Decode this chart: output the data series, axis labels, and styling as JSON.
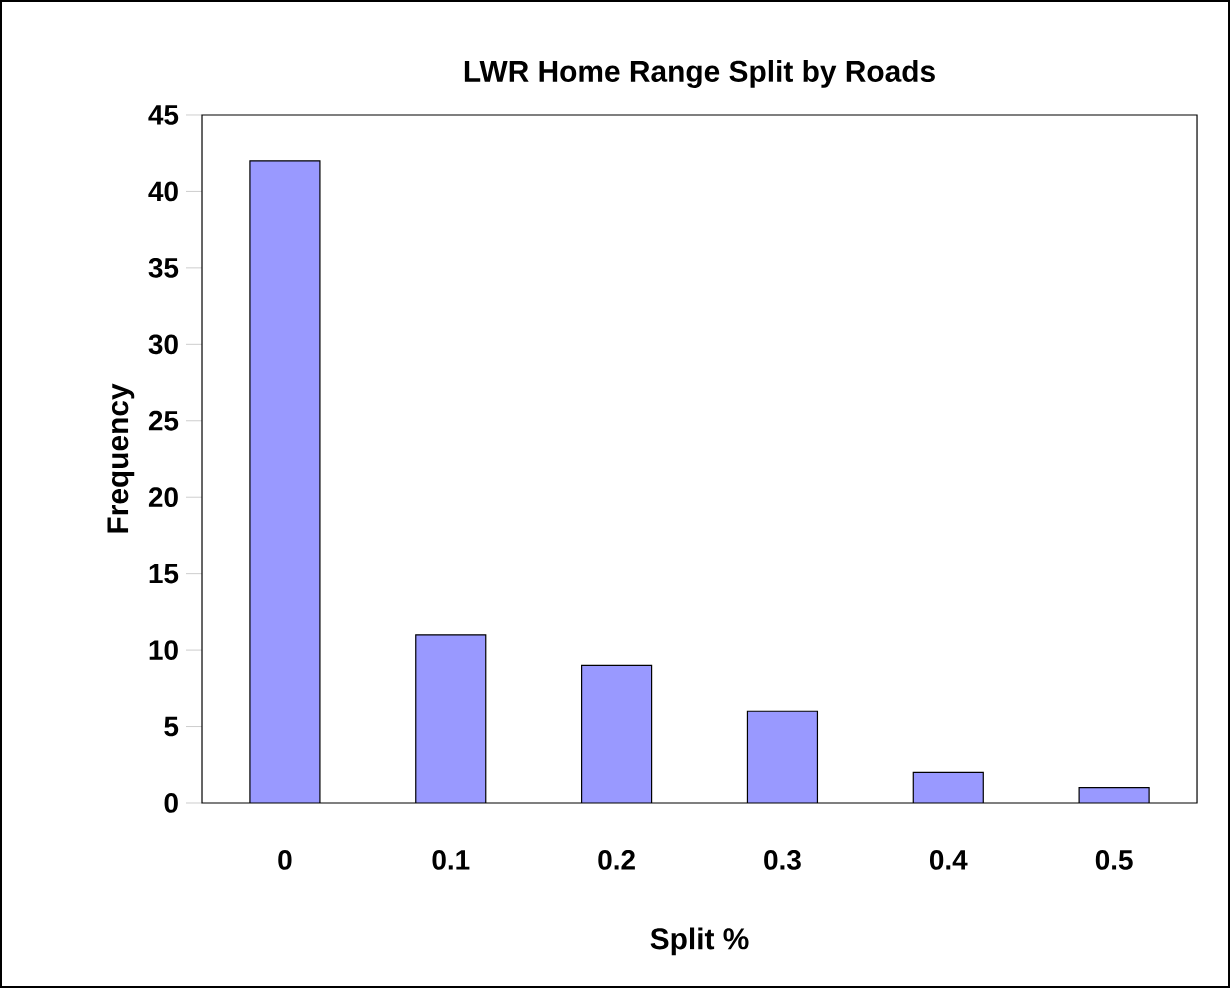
{
  "chart_data": {
    "type": "bar",
    "title": "LWR Home Range Split by Roads",
    "xlabel": "Split %",
    "ylabel": "Frequency",
    "categories": [
      "0",
      "0.1",
      "0.2",
      "0.3",
      "0.4",
      "0.5"
    ],
    "values": [
      42,
      11,
      9,
      6,
      2,
      1
    ],
    "color": "#9999ff",
    "ylim": [
      0,
      45
    ],
    "yticks": [
      0,
      5,
      10,
      15,
      20,
      25,
      30,
      35,
      40,
      45
    ]
  }
}
